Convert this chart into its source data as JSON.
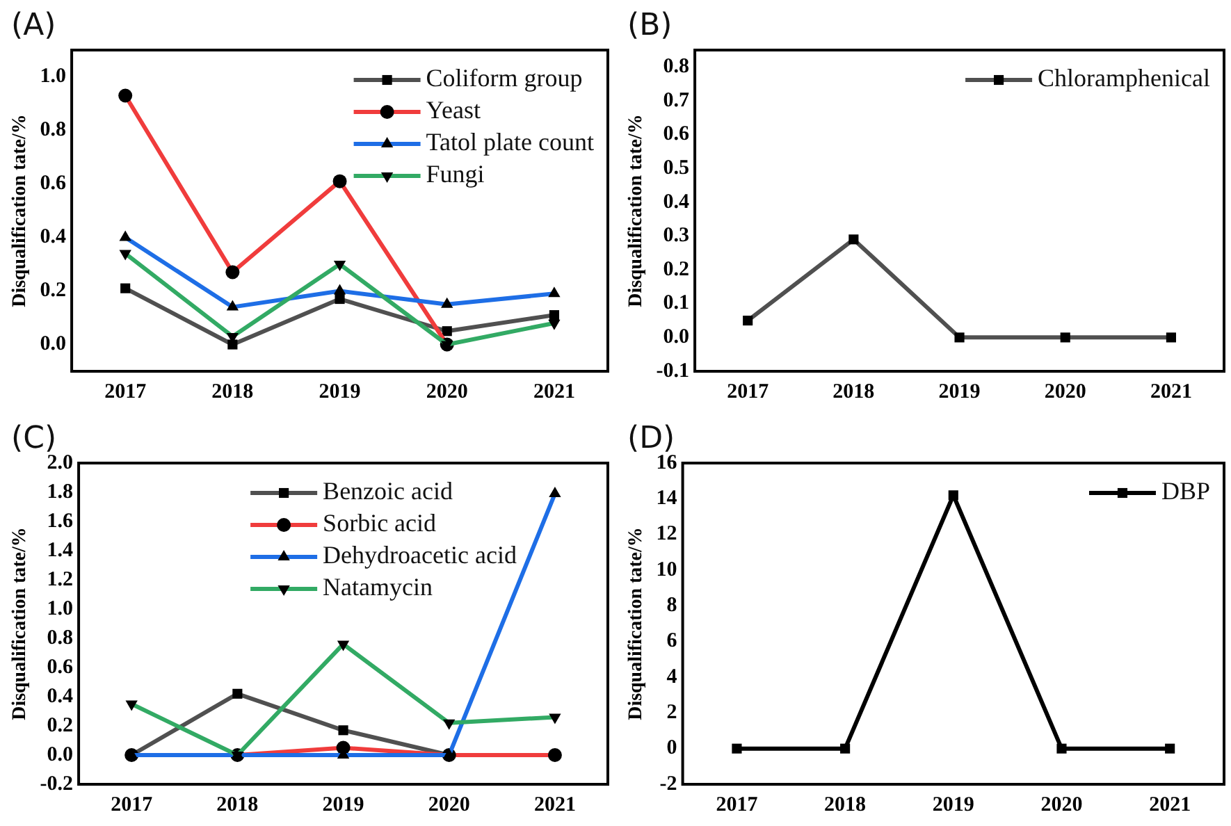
{
  "chart_data": [
    {
      "type": "line",
      "title": "(A)",
      "ylabel": "Disqualification tate/%",
      "categories": [
        "2017",
        "2018",
        "2019",
        "2020",
        "2021"
      ],
      "ylim": [
        -0.1,
        1.1
      ],
      "yticks": [
        {
          "value": 0,
          "label": "0.0"
        },
        0.2,
        0.4,
        0.6,
        0.8,
        {
          "value": 1,
          "label": "1.0"
        }
      ],
      "grid": false,
      "legend": "top right",
      "series": [
        {
          "name": "Coliform group",
          "color": "#505050",
          "marker": "square",
          "values": [
            0.21,
            0.0,
            0.17,
            0.05,
            0.11
          ]
        },
        {
          "name": "Yeast",
          "color": "#f03c3c",
          "marker": "circle",
          "values": [
            0.93,
            0.27,
            0.61,
            0.0,
            null
          ]
        },
        {
          "name": "Tatol plate count",
          "color": "#1e6ee6",
          "marker": "triangle",
          "values": [
            0.4,
            0.14,
            0.2,
            0.15,
            0.19
          ]
        },
        {
          "name": "Fungi",
          "color": "#32aa64",
          "marker": "triangle-down",
          "values": [
            0.34,
            0.03,
            0.3,
            0.0,
            0.08
          ]
        }
      ]
    },
    {
      "type": "line",
      "title": "(B)",
      "ylabel": "Disqualification tate/%",
      "categories": [
        "2017",
        "2018",
        "2019",
        "2020",
        "2021"
      ],
      "ylim": [
        -0.1,
        0.85
      ],
      "yticks": [
        -0.1,
        {
          "value": 0,
          "label": "0.0"
        },
        0.1,
        0.2,
        0.3,
        0.4,
        0.5,
        0.6,
        0.7,
        0.8
      ],
      "grid": false,
      "legend": "top right",
      "series": [
        {
          "name": "Chloramphenical",
          "color": "#505050",
          "marker": "square",
          "values": [
            0.05,
            0.29,
            0.0,
            0.0,
            0.0
          ]
        }
      ]
    },
    {
      "type": "line",
      "title": "(C)",
      "ylabel": "Disqualification tate/%",
      "categories": [
        "2017",
        "2018",
        "2019",
        "2020",
        "2021"
      ],
      "ylim": [
        -0.2,
        2.0
      ],
      "yticks": [
        -0.2,
        {
          "value": 0,
          "label": "0.0"
        },
        0.2,
        0.4,
        0.6,
        0.8,
        {
          "value": 1,
          "label": "1.0"
        },
        1.2,
        1.4,
        1.6,
        1.8,
        {
          "value": 2,
          "label": "2.0"
        }
      ],
      "grid": false,
      "legend": "top",
      "series": [
        {
          "name": "Benzoic acid",
          "color": "#505050",
          "marker": "square",
          "values": [
            0.0,
            0.42,
            0.17,
            0.0,
            0.0
          ]
        },
        {
          "name": "Sorbic acid",
          "color": "#f03c3c",
          "marker": "circle",
          "values": [
            0.0,
            0.0,
            0.05,
            0.0,
            0.0
          ]
        },
        {
          "name": "Dehydroacetic acid",
          "color": "#1e6ee6",
          "marker": "triangle",
          "values": [
            0.0,
            0.0,
            0.0,
            0.0,
            1.79
          ]
        },
        {
          "name": "Natamycin",
          "color": "#32aa64",
          "marker": "triangle-down",
          "values": [
            0.35,
            0.0,
            0.76,
            0.22,
            0.26
          ]
        }
      ]
    },
    {
      "type": "line",
      "title": "(D)",
      "ylabel": "Disqualification tate/%",
      "categories": [
        "2017",
        "2018",
        "2019",
        "2020",
        "2021"
      ],
      "ylim": [
        -2,
        16
      ],
      "yticks": [
        -2,
        0,
        2,
        4,
        6,
        8,
        10,
        12,
        14,
        16
      ],
      "grid": false,
      "legend": "top right",
      "series": [
        {
          "name": "DBP",
          "color": "#000000",
          "marker": "square",
          "values": [
            0,
            0,
            14.2,
            0,
            0
          ]
        }
      ]
    }
  ]
}
